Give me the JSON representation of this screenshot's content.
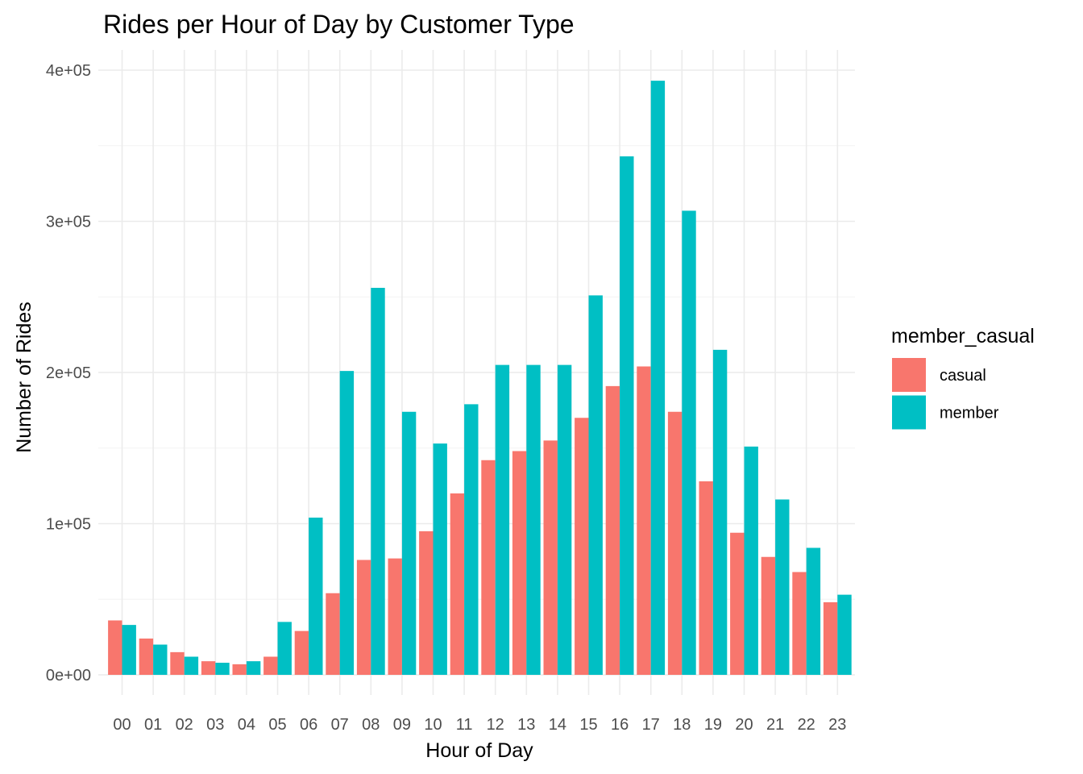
{
  "chart_data": {
    "type": "bar",
    "title": "Rides per Hour of Day by Customer Type",
    "xlabel": "Hour of Day",
    "ylabel": "Number of Rides",
    "categories": [
      "00",
      "01",
      "02",
      "03",
      "04",
      "05",
      "06",
      "07",
      "08",
      "09",
      "10",
      "11",
      "12",
      "13",
      "14",
      "15",
      "16",
      "17",
      "18",
      "19",
      "20",
      "21",
      "22",
      "23"
    ],
    "series": [
      {
        "name": "casual",
        "color": "#F8766D",
        "values": [
          36000,
          24000,
          15000,
          9000,
          7000,
          12000,
          29000,
          54000,
          76000,
          77000,
          95000,
          120000,
          142000,
          148000,
          155000,
          170000,
          191000,
          204000,
          174000,
          128000,
          94000,
          78000,
          68000,
          48000
        ]
      },
      {
        "name": "member",
        "color": "#00BFC4",
        "values": [
          33000,
          20000,
          12000,
          8000,
          9000,
          35000,
          104000,
          201000,
          256000,
          174000,
          153000,
          179000,
          205000,
          205000,
          205000,
          251000,
          343000,
          393000,
          307000,
          215000,
          151000,
          116000,
          84000,
          53000
        ]
      }
    ],
    "ylim": [
      0,
      400000
    ],
    "y_ticks": [
      0,
      100000,
      200000,
      300000,
      400000
    ],
    "y_tick_labels": [
      "0e+00",
      "1e+05",
      "2e+05",
      "3e+05",
      "4e+05"
    ],
    "grid": true,
    "legend": {
      "title": "member_casual",
      "placement": "right"
    }
  }
}
